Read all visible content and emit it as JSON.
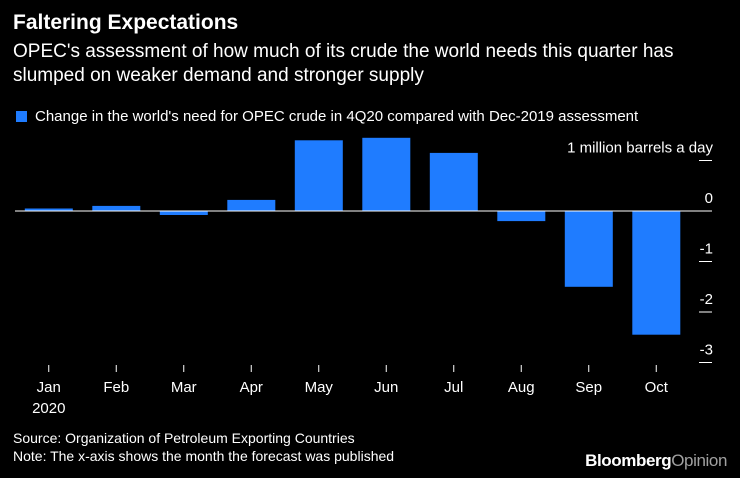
{
  "title": "Faltering Expectations",
  "subtitle": "OPEC's assessment of how much of its crude the world needs this quarter has slumped on weaker demand and stronger supply",
  "footer": {
    "source": "Source: Organization of Petroleum Exporting Countries",
    "note": "Note: The x-axis shows the month the forecast was published",
    "brand_main": "Bloomberg",
    "brand_sub": "Opinion"
  },
  "colors": {
    "bar": "#1f7cff",
    "background": "#000000",
    "text": "#ffffff",
    "axis": "#ffffff"
  },
  "chart_data": {
    "type": "bar",
    "title": "Faltering Expectations",
    "legend": "Change in the world's need for OPEC crude in 4Q20 compared with Dec-2019 assessment",
    "unit_label": "1 million barrels a day",
    "categories": [
      "Jan",
      "Feb",
      "Mar",
      "Apr",
      "May",
      "Jun",
      "Jul",
      "Aug",
      "Sep",
      "Oct"
    ],
    "year_label": "2020",
    "values": [
      0.05,
      0.1,
      -0.08,
      0.22,
      1.4,
      1.45,
      1.15,
      -0.2,
      -1.5,
      -2.45
    ],
    "yticks": [
      1,
      0,
      -1,
      -2,
      -3
    ],
    "ytick_labels": [
      "1 million barrels a day",
      "0",
      "-1",
      "-2",
      "-3"
    ],
    "ylim": [
      -3.3,
      1.5
    ],
    "xlabel": "",
    "ylabel": "",
    "legend_position": "top-left"
  }
}
